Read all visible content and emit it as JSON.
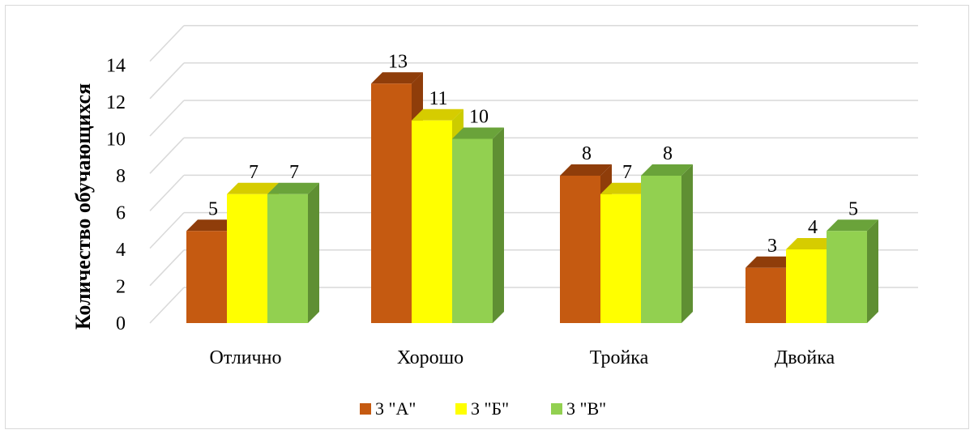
{
  "chart_data": {
    "type": "bar",
    "title": "",
    "ylabel": "Количество обучающихся",
    "xlabel": "",
    "ylim": [
      0,
      14
    ],
    "yticks": [
      0,
      2,
      4,
      6,
      8,
      10,
      12,
      14
    ],
    "grid": true,
    "legend_position": "bottom",
    "categories": [
      "Отлично",
      "Хорошо",
      "Тройка",
      "Двойка"
    ],
    "series": [
      {
        "name": "3 \"А\"",
        "values": [
          5,
          13,
          8,
          3
        ],
        "color": "#c55a11",
        "top_color": "#8f3d0a",
        "side_color": "#8f3d0a"
      },
      {
        "name": "3 \"Б\"",
        "values": [
          7,
          11,
          7,
          4
        ],
        "color": "#ffff00",
        "top_color": "#d6cc00",
        "side_color": "#cccc00"
      },
      {
        "name": "3 \"В\"",
        "values": [
          7,
          10,
          8,
          5
        ],
        "color": "#92d050",
        "top_color": "#6aa33a",
        "side_color": "#5f8f33"
      }
    ]
  }
}
